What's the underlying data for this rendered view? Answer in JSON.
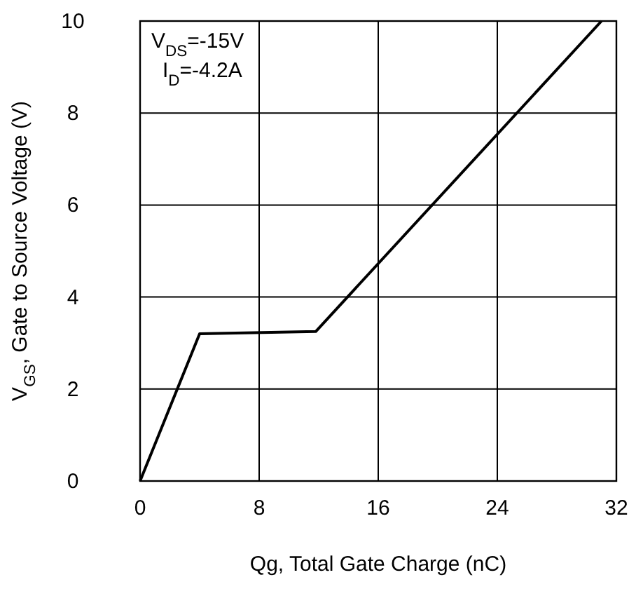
{
  "chart_data": {
    "type": "line",
    "xlabel": "Qg, Total Gate Charge (nC)",
    "ylabel": "V$_{GS}$, Gate to Source Voltage (V)",
    "x": [
      0,
      4,
      11.8,
      31
    ],
    "series": [
      {
        "color": "#000000",
        "values": [
          0,
          3.2,
          3.25,
          10
        ]
      }
    ],
    "xlim": [
      0,
      32
    ],
    "xticks": [
      0,
      8,
      16,
      24,
      32
    ],
    "ylim": [
      0,
      10
    ],
    "yticks": [
      0,
      2,
      4,
      6,
      8,
      10
    ],
    "grid": true,
    "annotations": [
      "V$_{DS}$=-15V",
      "I$_{D}$=-4.2A"
    ]
  }
}
